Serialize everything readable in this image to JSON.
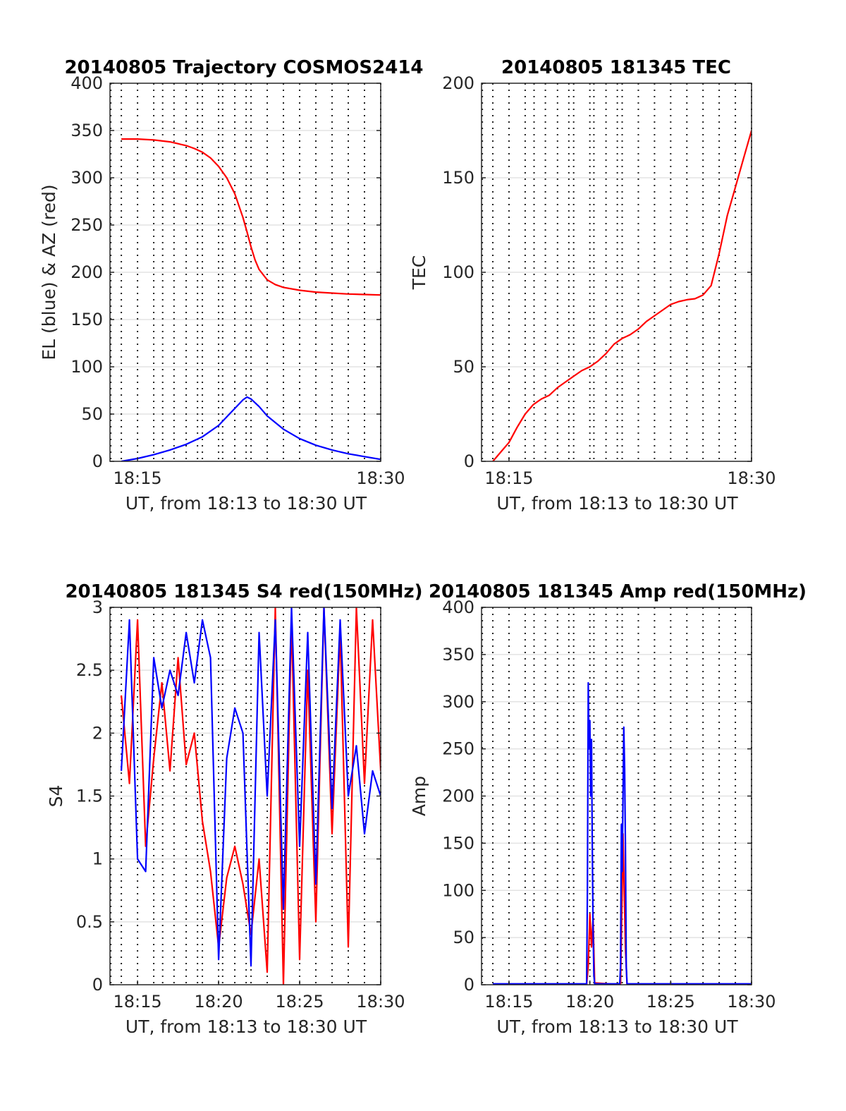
{
  "chart_data": [
    {
      "type": "line",
      "title": "20140805 Trajectory COSMOS2414",
      "xlabel": "UT, from 18:13 to 18:30 UT",
      "ylabel": "EL (blue) & AZ (red)",
      "xlim": [
        13.3,
        30
      ],
      "ylim": [
        0,
        400
      ],
      "xticks": [
        15,
        30
      ],
      "xtick_labels": [
        "18:15",
        "18:30"
      ],
      "yticks": [
        0,
        50,
        100,
        150,
        200,
        250,
        300,
        350,
        400
      ],
      "ytick_labels": [
        "0",
        "50",
        "100",
        "150",
        "200",
        "250",
        "300",
        "350",
        "400"
      ],
      "x_dotted_grid": [
        13.35,
        14,
        15,
        16,
        16.55,
        17.25,
        18,
        18.7,
        19,
        20,
        20.25,
        21,
        21.7,
        22,
        23,
        24,
        25,
        26,
        27,
        28,
        29,
        30
      ],
      "grid": true,
      "series": [
        {
          "color": "#ff0000",
          "x": [
            14.0,
            15.0,
            16.0,
            17.0,
            18.0,
            18.5,
            19.0,
            19.5,
            20.0,
            20.5,
            21.0,
            21.5,
            21.75,
            22.0,
            22.25,
            22.5,
            23.0,
            23.5,
            24.0,
            25.0,
            26.0,
            27.0,
            28.0,
            29.0,
            30.0
          ],
          "values": [
            341,
            341,
            340,
            338,
            334,
            331,
            327,
            321,
            312,
            300,
            283,
            258,
            243,
            227,
            213,
            203,
            192,
            187,
            184,
            181,
            179,
            178,
            177,
            176.5,
            176
          ]
        },
        {
          "color": "#0000ff",
          "x": [
            14.0,
            15.0,
            16.0,
            17.0,
            18.0,
            19.0,
            20.0,
            20.5,
            21.0,
            21.5,
            21.75,
            22.0,
            22.5,
            23.0,
            24.0,
            25.0,
            26.0,
            27.0,
            28.0,
            29.0,
            30.0
          ],
          "values": [
            0,
            3,
            7,
            12,
            18,
            26,
            38,
            47,
            56,
            65,
            68,
            66,
            58,
            48,
            34,
            24,
            17,
            12,
            8,
            5,
            2
          ]
        }
      ]
    },
    {
      "type": "line",
      "title": "20140805 181345 TEC",
      "xlabel": "UT, from 18:13 to 18:30 UT",
      "ylabel": "TEC",
      "xlim": [
        13.3,
        30
      ],
      "ylim": [
        0,
        200
      ],
      "xticks": [
        15,
        30
      ],
      "xtick_labels": [
        "18:15",
        "18:30"
      ],
      "yticks": [
        0,
        50,
        100,
        150,
        200
      ],
      "ytick_labels": [
        "0",
        "50",
        "100",
        "150",
        "200"
      ],
      "x_dotted_grid": [
        13.35,
        14,
        15,
        16,
        16.55,
        17.25,
        18,
        18.7,
        19,
        20,
        20.25,
        21,
        21.7,
        22,
        23,
        24,
        25,
        26,
        27,
        28,
        29,
        30
      ],
      "grid": true,
      "series": [
        {
          "color": "#ff0000",
          "x": [
            14.0,
            14.5,
            15.0,
            15.5,
            16.0,
            16.5,
            17.0,
            17.5,
            18.0,
            18.5,
            19.0,
            19.5,
            20.0,
            20.5,
            21.0,
            21.5,
            22.0,
            22.5,
            23.0,
            23.5,
            24.0,
            24.5,
            25.0,
            25.5,
            26.0,
            26.5,
            27.0,
            27.5,
            28.0,
            28.5,
            29.0,
            29.5,
            30.0
          ],
          "values": [
            0,
            5,
            10,
            18,
            25,
            30,
            33,
            35,
            39,
            42,
            45,
            48,
            50,
            53,
            57,
            62,
            65,
            67,
            70,
            74,
            77,
            80,
            83,
            84.5,
            85.5,
            86,
            88,
            93,
            110,
            130,
            145,
            160,
            175
          ]
        }
      ]
    },
    {
      "type": "line",
      "title": "20140805 181345 S4 red(150MHz)",
      "xlabel": "UT, from 18:13 to 18:30 UT",
      "ylabel": "S4",
      "xlim": [
        13.3,
        30
      ],
      "ylim": [
        0,
        3
      ],
      "xticks": [
        15,
        20,
        25,
        30
      ],
      "xtick_labels": [
        "18:15",
        "18:20",
        "18:25",
        "18:30"
      ],
      "yticks": [
        0,
        0.5,
        1,
        1.5,
        2,
        2.5,
        3
      ],
      "ytick_labels": [
        "0",
        "0.5",
        "1",
        "1.5",
        "2",
        "2.5",
        "3"
      ],
      "x_dotted_grid": [
        13.35,
        14,
        15,
        16,
        16.55,
        17.25,
        18,
        18.7,
        19,
        20,
        20.25,
        21,
        21.7,
        22,
        23,
        24,
        25,
        26,
        27,
        28,
        29,
        30
      ],
      "grid": true,
      "series": [
        {
          "color": "#ff0000",
          "x": [
            14.0,
            14.5,
            15.0,
            15.5,
            16.0,
            16.5,
            17.0,
            17.5,
            18.0,
            18.5,
            19.0,
            19.5,
            20.0,
            20.5,
            21.0,
            21.5,
            22.0,
            22.5,
            23.0,
            23.5,
            24.0,
            24.5,
            25.0,
            25.5,
            26.0,
            26.5,
            27.0,
            27.5,
            28.0,
            28.5,
            29.0,
            29.5,
            30.0
          ],
          "values": [
            2.3,
            1.6,
            2.9,
            1.1,
            1.8,
            2.4,
            1.7,
            2.6,
            1.75,
            2.0,
            1.3,
            0.9,
            0.3,
            0.85,
            1.1,
            0.8,
            0.4,
            1.0,
            0.1,
            3.0,
            0.0,
            2.9,
            0.2,
            2.5,
            0.5,
            3.0,
            1.2,
            2.8,
            0.3,
            3.0,
            1.6,
            2.9,
            1.7
          ]
        },
        {
          "color": "#0000ff",
          "x": [
            14.0,
            14.5,
            15.0,
            15.5,
            16.0,
            16.5,
            17.0,
            17.5,
            18.0,
            18.5,
            19.0,
            19.5,
            20.0,
            20.5,
            21.0,
            21.5,
            22.0,
            22.5,
            23.0,
            23.5,
            24.0,
            24.5,
            25.0,
            25.5,
            26.0,
            26.5,
            27.0,
            27.5,
            28.0,
            28.5,
            29.0,
            29.5,
            30.0
          ],
          "values": [
            1.7,
            2.9,
            1.0,
            0.9,
            2.6,
            2.2,
            2.5,
            2.3,
            2.8,
            2.4,
            2.9,
            2.6,
            0.2,
            1.8,
            2.2,
            2.0,
            0.15,
            2.8,
            1.5,
            2.9,
            0.6,
            3.0,
            1.1,
            2.8,
            0.8,
            3.0,
            1.4,
            2.9,
            1.5,
            1.9,
            1.2,
            1.7,
            1.5
          ]
        }
      ]
    },
    {
      "type": "line",
      "title": "20140805 181345 Amp red(150MHz)",
      "xlabel": "UT, from 18:13 to 18:30 UT",
      "ylabel": "Amp",
      "xlim": [
        13.3,
        30
      ],
      "ylim": [
        0,
        400
      ],
      "xticks": [
        15,
        20,
        25,
        30
      ],
      "xtick_labels": [
        "18:15",
        "18:20",
        "18:25",
        "18:30"
      ],
      "yticks": [
        0,
        50,
        100,
        150,
        200,
        250,
        300,
        350,
        400
      ],
      "ytick_labels": [
        "0",
        "50",
        "100",
        "150",
        "200",
        "250",
        "300",
        "350",
        "400"
      ],
      "x_dotted_grid": [
        13.35,
        14,
        15,
        16,
        16.55,
        17.25,
        18,
        18.7,
        19,
        20,
        20.25,
        21,
        21.7,
        22,
        23,
        24,
        25,
        26,
        27,
        28,
        29,
        30
      ],
      "grid": true,
      "series": [
        {
          "color": "#ff0000",
          "x": [
            14.0,
            19.8,
            19.9,
            20.0,
            20.1,
            20.2,
            20.3,
            21.9,
            22.0,
            22.05,
            22.1,
            22.2,
            22.3,
            30.0
          ],
          "values": [
            0,
            0,
            20,
            75,
            40,
            70,
            2,
            0,
            100,
            160,
            120,
            40,
            0,
            0
          ]
        },
        {
          "color": "#0000ff",
          "x": [
            14.0,
            19.8,
            19.85,
            19.9,
            19.95,
            20.0,
            20.05,
            20.1,
            20.15,
            20.2,
            20.25,
            20.3,
            21.85,
            21.9,
            21.95,
            22.0,
            22.05,
            22.1,
            22.15,
            22.2,
            22.25,
            22.3,
            30.0
          ],
          "values": [
            1,
            1,
            100,
            320,
            250,
            280,
            200,
            260,
            150,
            60,
            10,
            1,
            1,
            20,
            170,
            120,
            200,
            273,
            230,
            150,
            20,
            1,
            1
          ]
        }
      ]
    }
  ]
}
